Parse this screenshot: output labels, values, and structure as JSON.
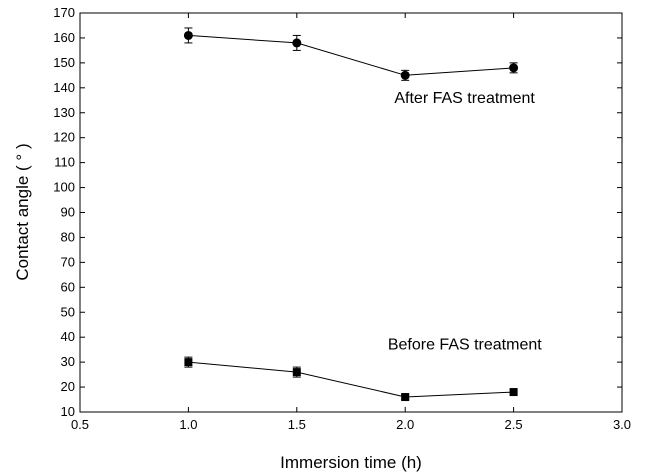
{
  "chart_data": {
    "type": "scatter",
    "title": "",
    "xlabel": "Immersion time (h)",
    "ylabel": "Contact angle ( ° )",
    "xlim": [
      0.5,
      3.0
    ],
    "ylim": [
      10,
      170
    ],
    "xticks": [
      "0.5",
      "1.0",
      "1.5",
      "2.0",
      "2.5",
      "3.0"
    ],
    "yticks": [
      "10",
      "20",
      "30",
      "40",
      "50",
      "60",
      "70",
      "80",
      "90",
      "100",
      "110",
      "120",
      "130",
      "140",
      "150",
      "160",
      "170"
    ],
    "grid": false,
    "legend": "none",
    "series": [
      {
        "marker": "circle",
        "color": "#000000",
        "x": [
          1.0,
          1.5,
          2.0,
          2.5
        ],
        "y": [
          161,
          158,
          145,
          148
        ],
        "error": [
          3,
          3,
          2,
          2
        ]
      },
      {
        "marker": "square",
        "color": "#000000",
        "x": [
          1.0,
          1.5,
          2.0,
          2.5
        ],
        "y": [
          30,
          26,
          16,
          18
        ],
        "error": [
          2,
          2,
          1,
          1
        ]
      }
    ],
    "annotations": [
      {
        "text": "After FAS treatment",
        "x": 1.95,
        "y": 134
      },
      {
        "text": "Before FAS treatment",
        "x": 1.92,
        "y": 35
      }
    ]
  }
}
